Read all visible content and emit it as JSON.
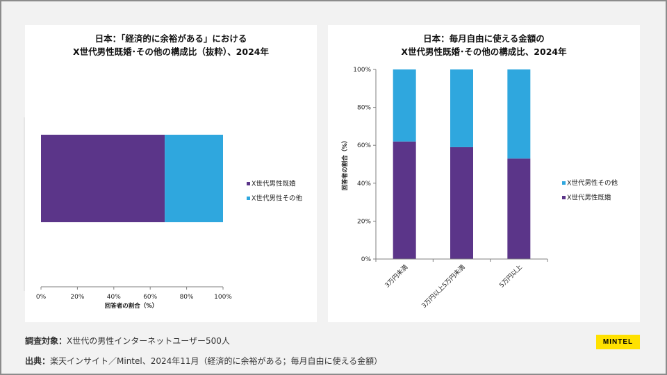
{
  "colors": {
    "purple": "#5b3589",
    "blue": "#2fa7de",
    "logo_bg": "#ffe100"
  },
  "chart_data": [
    {
      "type": "bar",
      "orientation": "horizontal",
      "stacked": true,
      "title": [
        "日本：「経済的に余裕がある」における",
        "X世代男性既婚･その他の構成比（抜粋）、2024年"
      ],
      "xlabel": "回答者の割合（%）",
      "ylabel": "",
      "xlim": [
        0,
        100
      ],
      "x_ticks": [
        "0%",
        "20%",
        "40%",
        "60%",
        "80%",
        "100%"
      ],
      "categories": [
        ""
      ],
      "series": [
        {
          "name": "X世代男性既婚",
          "color": "#5b3589",
          "values": [
            68
          ]
        },
        {
          "name": "X世代男性その他",
          "color": "#2fa7de",
          "values": [
            32
          ]
        }
      ],
      "legend": [
        "X世代男性既婚",
        "X世代男性その他"
      ]
    },
    {
      "type": "bar",
      "orientation": "vertical",
      "stacked": true,
      "title": [
        "日本：毎月自由に使える金額の",
        "X世代男性既婚･その他の構成比、2024年"
      ],
      "xlabel": "",
      "ylabel": "回答者の割合（%）",
      "ylim": [
        0,
        100
      ],
      "y_ticks": [
        "0%",
        "20%",
        "40%",
        "60%",
        "80%",
        "100%"
      ],
      "categories": [
        "3万円未満",
        "3万円以上5万円未満",
        "5万円以上"
      ],
      "series": [
        {
          "name": "X世代男性既婚",
          "color": "#5b3589",
          "values": [
            62,
            59,
            53
          ]
        },
        {
          "name": "X世代男性その他",
          "color": "#2fa7de",
          "values": [
            38,
            41,
            47
          ]
        }
      ],
      "legend": [
        "X世代男性その他",
        "X世代男性既婚"
      ]
    }
  ],
  "footer": {
    "survey_label": "調査対象：",
    "survey_text": "X世代の男性インターネットユーザー500人",
    "source_label": "出典：",
    "source_text": "楽天インサイト／Mintel、2024年11月（経済的に余裕がある；毎月自由に使える金額）"
  },
  "logo": "MINTEL"
}
